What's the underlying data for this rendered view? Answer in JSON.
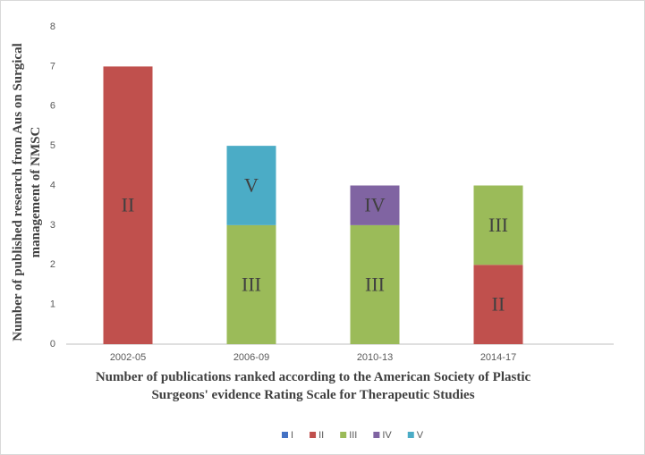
{
  "chart_data": {
    "type": "stacked_bar",
    "x_label": "Number of publications  ranked according  to the American  Society of Plastic Surgeons'  evidence Rating Scale for Therapeutic  Studies",
    "y_label": "Number of published  research from Aus on Surgical management  of NMSC",
    "categories": [
      "2002-05",
      "2006-09",
      "2010-13",
      "2014-17"
    ],
    "series": [
      {
        "name": "I",
        "color": "#4472c4",
        "values": [
          0,
          0,
          0,
          0
        ]
      },
      {
        "name": "II",
        "color": "#c0504d",
        "values": [
          7,
          0,
          0,
          2
        ]
      },
      {
        "name": "III",
        "color": "#9bbb59",
        "values": [
          0,
          3,
          3,
          2
        ]
      },
      {
        "name": "IV",
        "color": "#8064a2",
        "values": [
          0,
          0,
          1,
          0
        ]
      },
      {
        "name": "V",
        "color": "#4bacc6",
        "values": [
          0,
          2,
          0,
          0
        ]
      }
    ],
    "ylim": [
      0,
      8
    ],
    "yticks": [
      0,
      1,
      2,
      3,
      4,
      5,
      6,
      7,
      8
    ],
    "grid": false,
    "legend": "bottom"
  }
}
